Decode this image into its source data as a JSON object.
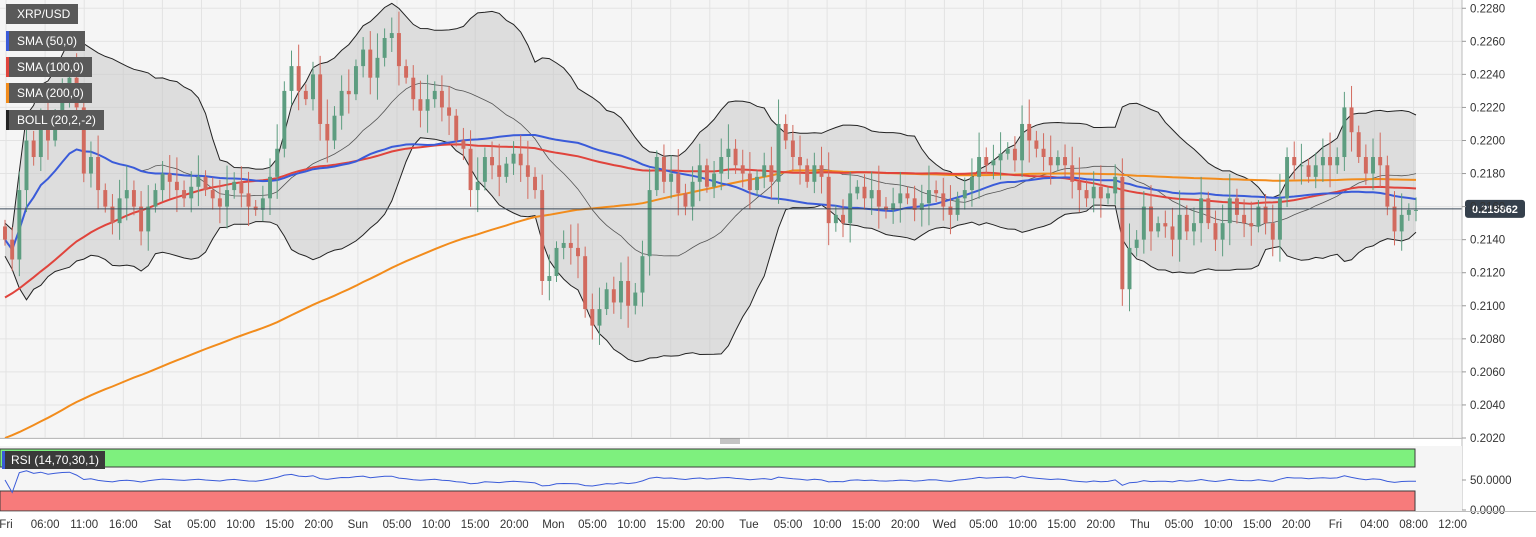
{
  "chart_data": {
    "type": "candlestick",
    "symbol": "XRP/USD",
    "indicators": [
      {
        "label": "SMA (50,0)",
        "color": "#3a5bd9"
      },
      {
        "label": "SMA (100,0)",
        "color": "#e0443c"
      },
      {
        "label": "SMA (200,0)",
        "color": "#f28c1c"
      },
      {
        "label": "BOLL (20,2,-2)",
        "color": "#222222"
      }
    ],
    "current_price": 0.215862,
    "current_price_label": "0.215862",
    "y_axis": {
      "ylim": [
        0.202,
        0.2285
      ],
      "ticks": [
        "0.2020",
        "0.2040",
        "0.2060",
        "0.2080",
        "0.2100",
        "0.2120",
        "0.2140",
        "0.2160",
        "0.2180",
        "0.2200",
        "0.2220",
        "0.2240",
        "0.2260",
        "0.2280"
      ]
    },
    "x_axis": {
      "ticks": [
        "Fri",
        "06:00",
        "11:00",
        "16:00",
        "Sat",
        "05:00",
        "10:00",
        "15:00",
        "20:00",
        "Sun",
        "05:00",
        "10:00",
        "15:00",
        "20:00",
        "Mon",
        "05:00",
        "10:00",
        "15:00",
        "20:00",
        "Tue",
        "05:00",
        "10:00",
        "15:00",
        "20:00",
        "Wed",
        "05:00",
        "10:00",
        "15:00",
        "20:00",
        "Thu",
        "05:00",
        "10:00",
        "15:00",
        "20:00",
        "Fri",
        "04:00",
        "08:00",
        "12:00"
      ]
    },
    "close": [
      0.214,
      0.2128,
      0.217,
      0.22,
      0.219,
      0.221,
      0.22,
      0.2215,
      0.223,
      0.2238,
      0.222,
      0.218,
      0.219,
      0.217,
      0.216,
      0.215,
      0.2165,
      0.217,
      0.216,
      0.2145,
      0.216,
      0.217,
      0.218,
      0.2175,
      0.217,
      0.2165,
      0.2172,
      0.2178,
      0.217,
      0.2165,
      0.216,
      0.217,
      0.2175,
      0.2168,
      0.216,
      0.2158,
      0.2165,
      0.2178,
      0.2195,
      0.223,
      0.2245,
      0.223,
      0.2225,
      0.224,
      0.221,
      0.22,
      0.2215,
      0.223,
      0.2228,
      0.2245,
      0.2255,
      0.2238,
      0.225,
      0.2262,
      0.2265,
      0.2245,
      0.2238,
      0.2225,
      0.2218,
      0.2225,
      0.223,
      0.222,
      0.2215,
      0.22,
      0.2195,
      0.217,
      0.2175,
      0.219,
      0.2185,
      0.2178,
      0.2186,
      0.2192,
      0.2185,
      0.2178,
      0.217,
      0.2115,
      0.2118,
      0.2135,
      0.2138,
      0.2135,
      0.213,
      0.2098,
      0.2088,
      0.2098,
      0.211,
      0.2102,
      0.2115,
      0.21,
      0.2108,
      0.213,
      0.217,
      0.219,
      0.2175,
      0.218,
      0.2168,
      0.216,
      0.2175,
      0.2185,
      0.2172,
      0.218,
      0.219,
      0.2195,
      0.2185,
      0.218,
      0.217,
      0.2178,
      0.2185,
      0.2175,
      0.221,
      0.22,
      0.219,
      0.2185,
      0.2175,
      0.2185,
      0.2178,
      0.215,
      0.2155,
      0.215,
      0.2168,
      0.2172,
      0.2165,
      0.217,
      0.216,
      0.2158,
      0.2162,
      0.2168,
      0.2165,
      0.2158,
      0.2162,
      0.217,
      0.2168,
      0.216,
      0.2155,
      0.2165,
      0.217,
      0.2178,
      0.219,
      0.2185,
      0.2188,
      0.2192,
      0.2195,
      0.2188,
      0.221,
      0.22,
      0.2195,
      0.219,
      0.2185,
      0.219,
      0.2185,
      0.2175,
      0.217,
      0.2165,
      0.2172,
      0.2165,
      0.2168,
      0.2178,
      0.211,
      0.2135,
      0.214,
      0.216,
      0.2145,
      0.215,
      0.2148,
      0.214,
      0.2155,
      0.2145,
      0.215,
      0.2165,
      0.215,
      0.214,
      0.215,
      0.2165,
      0.2155,
      0.215,
      0.2148,
      0.216,
      0.215,
      0.214,
      0.2165,
      0.219,
      0.2185,
      0.2185,
      0.2178,
      0.2185,
      0.219,
      0.2185,
      0.219,
      0.222,
      0.2205,
      0.219,
      0.218,
      0.219,
      0.2185,
      0.216,
      0.2145,
      0.2155,
      0.2158,
      0.2158
    ],
    "rsi": {
      "label": "RSI (14,70,30,1)",
      "ylim": [
        0,
        100
      ],
      "levels": [
        30,
        70
      ],
      "ticks": [
        "0.0000",
        "50.0000"
      ],
      "current": 50
    }
  }
}
